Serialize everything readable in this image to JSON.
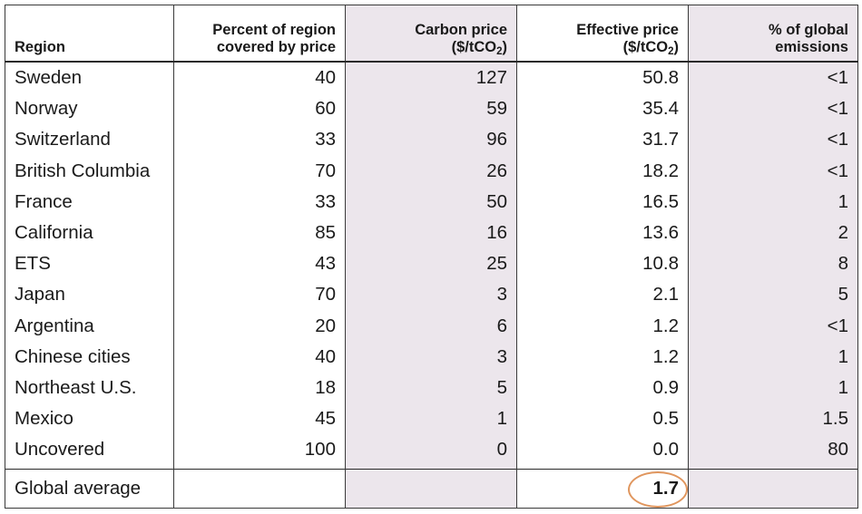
{
  "headers": {
    "region": "Region",
    "coverage": "Percent of region covered by price",
    "carbon_price": "Carbon price",
    "effective_price": "Effective price",
    "unit_prefix": "($/tCO",
    "unit_sub": "2",
    "unit_suffix": ")",
    "global_share": "% of global emissions"
  },
  "rows": [
    {
      "region": "Sweden",
      "coverage": "40",
      "carbon_price": "127",
      "effective_price": "50.8",
      "global_share": "<1"
    },
    {
      "region": "Norway",
      "coverage": "60",
      "carbon_price": "59",
      "effective_price": "35.4",
      "global_share": "<1"
    },
    {
      "region": "Switzerland",
      "coverage": "33",
      "carbon_price": "96",
      "effective_price": "31.7",
      "global_share": "<1"
    },
    {
      "region": "British Columbia",
      "coverage": "70",
      "carbon_price": "26",
      "effective_price": "18.2",
      "global_share": "<1"
    },
    {
      "region": "France",
      "coverage": "33",
      "carbon_price": "50",
      "effective_price": "16.5",
      "global_share": "1"
    },
    {
      "region": "California",
      "coverage": "85",
      "carbon_price": "16",
      "effective_price": "13.6",
      "global_share": "2"
    },
    {
      "region": "ETS",
      "coverage": "43",
      "carbon_price": "25",
      "effective_price": "10.8",
      "global_share": "8"
    },
    {
      "region": "Japan",
      "coverage": "70",
      "carbon_price": "3",
      "effective_price": "2.1",
      "global_share": "5"
    },
    {
      "region": "Argentina",
      "coverage": "20",
      "carbon_price": "6",
      "effective_price": "1.2",
      "global_share": "<1"
    },
    {
      "region": "Chinese cities",
      "coverage": "40",
      "carbon_price": "3",
      "effective_price": "1.2",
      "global_share": "1"
    },
    {
      "region": "Northeast U.S.",
      "coverage": "18",
      "carbon_price": "5",
      "effective_price": "0.9",
      "global_share": "1"
    },
    {
      "region": "Mexico",
      "coverage": "45",
      "carbon_price": "1",
      "effective_price": "0.5",
      "global_share": "1.5"
    },
    {
      "region": "Uncovered",
      "coverage": "100",
      "carbon_price": "0",
      "effective_price": "0.0",
      "global_share": "80"
    }
  ],
  "footer": {
    "label": "Global average",
    "effective_price": "1.7"
  },
  "colors": {
    "shade": "#ece6ec",
    "highlight_circle": "#e0965e",
    "border": "#3a3a3a"
  }
}
